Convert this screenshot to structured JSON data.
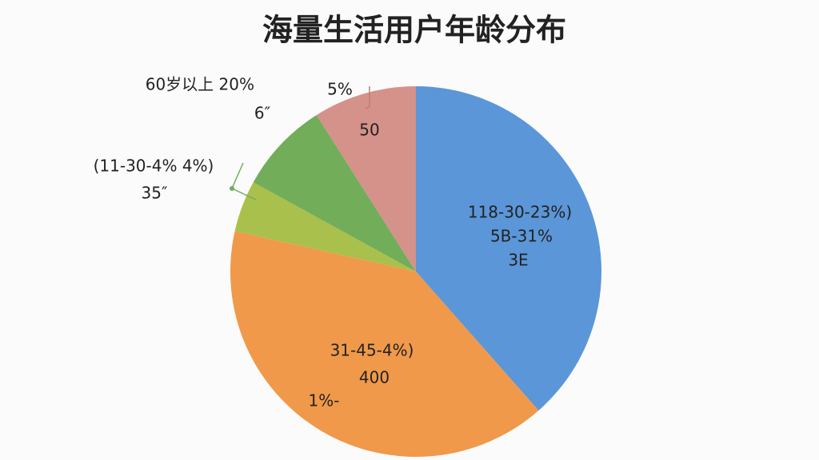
{
  "chart_data": {
    "type": "pie",
    "title": "海量生活用户年龄分布",
    "categories": [
      null,
      null,
      null,
      null,
      null
    ],
    "values": [
      38.5,
      40,
      4.5,
      8,
      9
    ],
    "colors": [
      "#5b96d8",
      "#f0994a",
      "#a9c04c",
      "#72ad5a",
      "#d4928a"
    ],
    "annotations": [
      "60岁以上 20%",
      "5%",
      "6″",
      "50",
      "(11-30-4% 4%)",
      "35″",
      "118-30-23%)",
      "5B-31%",
      "3E",
      "31-45-4%)",
      "400",
      "1%-"
    ]
  }
}
